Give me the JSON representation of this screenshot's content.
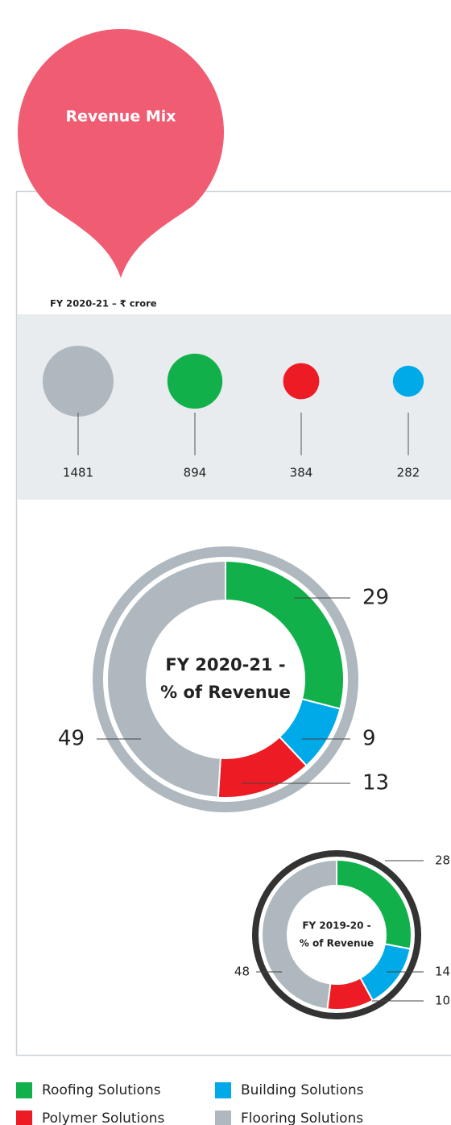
{
  "badge": "Revenue Mix",
  "legend": [
    {
      "name": "Roofing Solutions",
      "color": "#12b04b"
    },
    {
      "name": "Building Solutions",
      "color": "#00a9e8"
    },
    {
      "name": "Polymer Solutions",
      "color": "#ed1c24"
    },
    {
      "name": "Flooring Solutions",
      "color": "#aeb8be"
    }
  ],
  "chart_data": [
    {
      "type": "bubble",
      "title": "FY 2020-21 – ₹ crore",
      "values": [
        1481,
        894,
        384,
        282
      ],
      "colors": [
        "#aeb8be",
        "#12b04b",
        "#ed1c24",
        "#00a9e8"
      ]
    },
    {
      "type": "donut",
      "title": [
        "FY 2020-21 -",
        "% of Revenue"
      ],
      "values": [
        29,
        9,
        13,
        49
      ],
      "colors": [
        "#12b04b",
        "#00a9e8",
        "#ed1c24",
        "#aeb8be"
      ],
      "ring_color": "#aeb8be"
    },
    {
      "type": "donut",
      "title": [
        "FY 2019-20 -",
        "% of Revenue"
      ],
      "values": [
        28,
        14,
        10,
        48
      ],
      "colors": [
        "#12b04b",
        "#00a9e8",
        "#ed1c24",
        "#aeb8be"
      ],
      "ring_color": "#333333"
    }
  ]
}
